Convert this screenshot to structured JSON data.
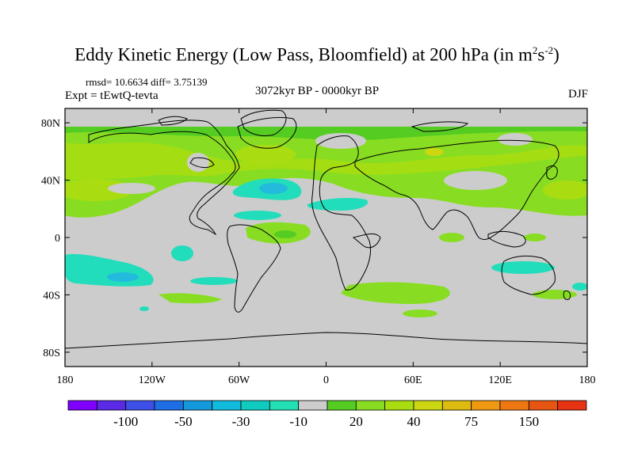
{
  "header": {
    "title_main": "Eddy Kinetic Energy (Low Pass, Bloomfield) at 200 hPa (in m",
    "title_sup1": "2",
    "title_s": "s",
    "title_sup2": "-2",
    "title_close": ")",
    "stats": "rmsd= 10.6634 diff= 3.75139",
    "experiment": "Expt = tEwtQ-tevta",
    "period": "3072kyr BP - 0000kyr BP",
    "season": "DJF"
  },
  "map": {
    "lon_range": [
      -180,
      180
    ],
    "lat_range": [
      -90,
      90
    ],
    "lat_ticks": [
      {
        "value": 80,
        "label": "80N"
      },
      {
        "value": 40,
        "label": "40N"
      },
      {
        "value": 0,
        "label": "0"
      },
      {
        "value": -40,
        "label": "40S"
      },
      {
        "value": -80,
        "label": "80S"
      }
    ],
    "lon_ticks": [
      {
        "value": -180,
        "label": "180"
      },
      {
        "value": -120,
        "label": "120W"
      },
      {
        "value": -60,
        "label": "60W"
      },
      {
        "value": 0,
        "label": "0"
      },
      {
        "value": 60,
        "label": "60E"
      },
      {
        "value": 120,
        "label": "120E"
      },
      {
        "value": 180,
        "label": "180"
      }
    ],
    "colors": {
      "background_neutral": "#cccccc",
      "green_light": "#88dd22",
      "green": "#55cc22",
      "yellow_green": "#aadd11",
      "cyan": "#22ddbb",
      "cyan_dark": "#22bbdd",
      "coast": "#000000"
    }
  },
  "colorbar": {
    "colors": [
      "#7f00ff",
      "#5a2ae6",
      "#3d4fe6",
      "#1e6fe6",
      "#1499dd",
      "#10bbdd",
      "#10ccc0",
      "#22e0b4",
      "#cccccc",
      "#55cc22",
      "#88dd22",
      "#aadd11",
      "#ccd611",
      "#ddbb11",
      "#ee9911",
      "#ee7711",
      "#e65511",
      "#e63311"
    ],
    "labels": [
      {
        "value": "-100",
        "index": 2
      },
      {
        "value": "-50",
        "index": 4
      },
      {
        "value": "-30",
        "index": 6
      },
      {
        "value": "-10",
        "index": 8
      },
      {
        "value": "20",
        "index": 10
      },
      {
        "value": "40",
        "index": 12
      },
      {
        "value": "75",
        "index": 14
      },
      {
        "value": "150",
        "index": 16
      }
    ]
  }
}
